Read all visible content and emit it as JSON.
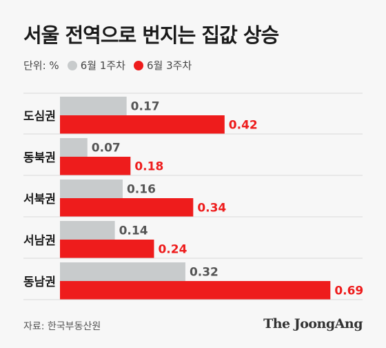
{
  "title": "서울 전역으로 번지는 집값 상승",
  "legend": {
    "unit_label": "단위: %",
    "series1_label": "6월 1주차",
    "series2_label": "6월 3주차"
  },
  "colors": {
    "series1": "#c8cbcc",
    "series2": "#ee1c1c",
    "label1": "#555555",
    "label2": "#ee1c1c",
    "divider": "#d9d9d9"
  },
  "chart_data": {
    "type": "bar",
    "orientation": "horizontal",
    "categories": [
      "도심권",
      "동북권",
      "서북권",
      "서남권",
      "동남권"
    ],
    "series": [
      {
        "name": "6월 1주차",
        "values": [
          0.17,
          0.07,
          0.16,
          0.14,
          0.32
        ]
      },
      {
        "name": "6월 3주차",
        "values": [
          0.42,
          0.18,
          0.34,
          0.24,
          0.69
        ]
      }
    ],
    "value_labels": [
      [
        "0.17",
        "0.07",
        "0.16",
        "0.14",
        "0.32"
      ],
      [
        "0.42",
        "0.18",
        "0.34",
        "0.24",
        "0.69"
      ]
    ],
    "xlim": [
      0,
      0.7
    ],
    "grid": false
  },
  "footer": {
    "source": "자료: 한국부동산원",
    "brand": "The JoongAng"
  }
}
